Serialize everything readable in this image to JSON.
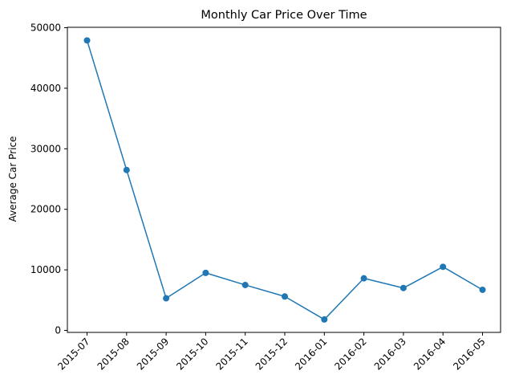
{
  "chart_data": {
    "type": "line",
    "title": "Monthly Car Price Over Time",
    "xlabel": "",
    "ylabel": "Average Car Price",
    "categories": [
      "2015-07",
      "2015-08",
      "2015-09",
      "2015-10",
      "2015-11",
      "2015-12",
      "2016-01",
      "2016-02",
      "2016-03",
      "2016-04",
      "2016-05"
    ],
    "series": [
      {
        "values": [
          47900,
          26500,
          5300,
          9500,
          7500,
          5600,
          1800,
          8600,
          7000,
          10500,
          6700
        ],
        "color": "#1f77b4",
        "marker": "circle"
      }
    ],
    "ylim": [
      0,
      50000
    ],
    "yticks": [
      0,
      10000,
      20000,
      30000,
      40000,
      50000
    ],
    "ytick_labels": [
      "0",
      "10000",
      "20000",
      "30000",
      "40000",
      "50000"
    ],
    "xtick_rotation": 45,
    "grid": false,
    "legend": "none"
  }
}
